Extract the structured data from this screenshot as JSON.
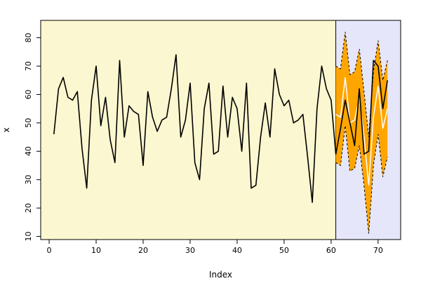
{
  "chart_data": {
    "type": "line",
    "title": "",
    "xlabel": "Index",
    "ylabel": "x",
    "xlim": [
      -1.8,
      74.8
    ],
    "ylim": [
      8.9,
      86.1
    ],
    "x_ticks": [
      0,
      10,
      20,
      30,
      40,
      50,
      60,
      70
    ],
    "y_ticks": [
      10,
      20,
      30,
      40,
      50,
      60,
      70,
      80
    ],
    "training_region": {
      "x_range": [
        -1.8,
        61
      ],
      "color": "#fbf7d0"
    },
    "forecast_region": {
      "x_range": [
        61,
        74.8
      ],
      "color": "#e6e6fa"
    },
    "series": [
      {
        "name": "",
        "kind": "actual",
        "color": "#000000",
        "x": [
          1,
          2,
          3,
          4,
          5,
          6,
          7,
          8,
          9,
          10,
          11,
          12,
          13,
          14,
          15,
          16,
          17,
          18,
          19,
          20,
          21,
          22,
          23,
          24,
          25,
          26,
          27,
          28,
          29,
          30,
          31,
          32,
          33,
          34,
          35,
          36,
          37,
          38,
          39,
          40,
          41,
          42,
          43,
          44,
          45,
          46,
          47,
          48,
          49,
          50,
          51,
          52,
          53,
          54,
          55,
          56,
          57,
          58,
          59,
          60,
          61,
          62,
          63,
          64,
          65,
          66,
          67,
          68,
          69,
          70,
          71,
          72
        ],
        "values": [
          46,
          62,
          66,
          59,
          58,
          61,
          41,
          27,
          58,
          70,
          49,
          59,
          44,
          36,
          72,
          45,
          56,
          54,
          53,
          35,
          61,
          52,
          47,
          51,
          52,
          62,
          74,
          45,
          51,
          64,
          36,
          30,
          55,
          64,
          39,
          40,
          63,
          45,
          59,
          55,
          40,
          64,
          27,
          28,
          45,
          57,
          45,
          69,
          60,
          56,
          58,
          50,
          51,
          53,
          38,
          22,
          55,
          70,
          62,
          58,
          39,
          48,
          58,
          50,
          42,
          62,
          39,
          40,
          72,
          70,
          55,
          65
        ]
      },
      {
        "name": "",
        "kind": "forecast",
        "color": "#ffffff",
        "x": [
          61,
          62,
          63,
          64,
          65,
          66,
          67,
          68,
          69,
          70,
          71,
          72
        ],
        "values": [
          53,
          52,
          66,
          50,
          51,
          59,
          45,
          28,
          52,
          63,
          48,
          55
        ]
      },
      {
        "name": "",
        "kind": "upper-band",
        "color": "#000000",
        "x": [
          61,
          62,
          63,
          64,
          65,
          66,
          67,
          68,
          69,
          70,
          71,
          72
        ],
        "values": [
          70,
          69,
          82,
          67,
          68,
          76,
          61,
          45,
          68,
          79,
          65,
          72
        ]
      },
      {
        "name": "",
        "kind": "lower-band",
        "color": "#000000",
        "x": [
          61,
          62,
          63,
          64,
          65,
          66,
          67,
          68,
          69,
          70,
          71,
          72
        ],
        "values": [
          36,
          35,
          49,
          33,
          34,
          42,
          28,
          11,
          35,
          46,
          31,
          38
        ]
      }
    ],
    "band_fill_color": "#ffa500",
    "grid": false,
    "legend": "none"
  }
}
